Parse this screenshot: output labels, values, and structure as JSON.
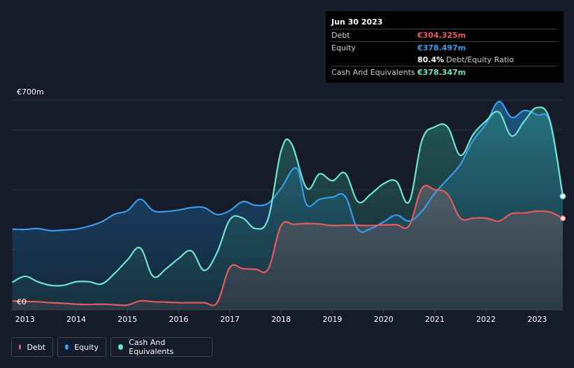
{
  "tooltip": {
    "date": "Jun 30 2023",
    "rows": [
      {
        "label": "Debt",
        "value": "€304.325m",
        "color": "#e45a5f"
      },
      {
        "label": "Equity",
        "value": "€378.497m",
        "color": "#3a9be8"
      },
      {
        "label": "",
        "value": "80.4%",
        "sub": "Debt/Equity Ratio",
        "color": "#ffffff"
      },
      {
        "label": "Cash And Equivalents",
        "value": "€378.347m",
        "color": "#6fe3cf"
      }
    ]
  },
  "legend": {
    "items": [
      {
        "label": "Debt",
        "color": "#e45a5f"
      },
      {
        "label": "Equity",
        "color": "#3a9be8"
      },
      {
        "label": "Cash And Equivalents",
        "color": "#6fe3cf"
      }
    ]
  },
  "chart_data": {
    "type": "area",
    "y_top_label": "€700m",
    "y_bottom_label": "€0",
    "ylim": [
      0,
      700
    ],
    "xlim": [
      2012.73,
      2023.5
    ],
    "x_ticks": [
      "2013",
      "2014",
      "2015",
      "2016",
      "2017",
      "2018",
      "2019",
      "2020",
      "2021",
      "2022",
      "2023"
    ],
    "grid": true,
    "legend_position": "bottom-left",
    "series": [
      {
        "name": "Equity",
        "color": "#3a9be8",
        "x": [
          2012.75,
          2013.0,
          2013.25,
          2013.5,
          2013.75,
          2014.0,
          2014.25,
          2014.5,
          2014.75,
          2015.0,
          2015.25,
          2015.5,
          2015.75,
          2016.0,
          2016.25,
          2016.5,
          2016.75,
          2017.0,
          2017.25,
          2017.5,
          2017.75,
          2018.0,
          2018.3,
          2018.5,
          2018.75,
          2019.0,
          2019.25,
          2019.5,
          2019.75,
          2020.0,
          2020.25,
          2020.5,
          2020.75,
          2021.0,
          2021.25,
          2021.5,
          2021.75,
          2022.0,
          2022.25,
          2022.5,
          2022.75,
          2023.0,
          2023.25,
          2023.5
        ],
        "y": [
          268,
          267,
          270,
          263,
          265,
          268,
          278,
          293,
          318,
          330,
          368,
          330,
          327,
          332,
          340,
          340,
          317,
          330,
          360,
          348,
          355,
          405,
          472,
          350,
          368,
          375,
          378,
          267,
          270,
          292,
          315,
          295,
          328,
          388,
          435,
          485,
          565,
          620,
          695,
          642,
          665,
          650,
          625,
          378
        ]
      },
      {
        "name": "Cash And Equivalents",
        "color": "#6fe3cf",
        "x": [
          2012.75,
          2013.0,
          2013.25,
          2013.5,
          2013.75,
          2014.0,
          2014.25,
          2014.5,
          2014.75,
          2015.0,
          2015.25,
          2015.5,
          2015.75,
          2016.0,
          2016.25,
          2016.5,
          2016.75,
          2017.0,
          2017.25,
          2017.5,
          2017.75,
          2018.0,
          2018.2,
          2018.5,
          2018.75,
          2019.0,
          2019.25,
          2019.5,
          2019.75,
          2020.0,
          2020.25,
          2020.5,
          2020.75,
          2021.0,
          2021.25,
          2021.5,
          2021.75,
          2022.0,
          2022.25,
          2022.5,
          2022.75,
          2023.0,
          2023.25,
          2023.5
        ],
        "y": [
          90,
          110,
          92,
          80,
          80,
          92,
          92,
          85,
          120,
          165,
          205,
          110,
          135,
          170,
          195,
          130,
          190,
          300,
          305,
          270,
          305,
          530,
          555,
          405,
          453,
          430,
          455,
          360,
          385,
          420,
          428,
          360,
          565,
          610,
          610,
          515,
          585,
          630,
          660,
          580,
          630,
          675,
          630,
          378
        ]
      },
      {
        "name": "Debt",
        "color": "#e45a5f",
        "x": [
          2012.75,
          2013.0,
          2013.25,
          2013.5,
          2013.75,
          2014.0,
          2014.25,
          2014.5,
          2014.75,
          2015.0,
          2015.25,
          2015.5,
          2015.75,
          2016.0,
          2016.25,
          2016.5,
          2016.75,
          2017.0,
          2017.25,
          2017.5,
          2017.75,
          2018.0,
          2018.25,
          2018.5,
          2018.75,
          2019.0,
          2019.25,
          2019.5,
          2019.75,
          2020.0,
          2020.25,
          2020.5,
          2020.75,
          2021.0,
          2021.25,
          2021.5,
          2021.75,
          2022.0,
          2022.25,
          2022.5,
          2022.75,
          2023.0,
          2023.25,
          2023.5
        ],
        "y": [
          28,
          26,
          25,
          22,
          20,
          17,
          16,
          17,
          15,
          14,
          28,
          25,
          24,
          22,
          22,
          22,
          22,
          140,
          136,
          134,
          135,
          280,
          284,
          287,
          285,
          280,
          281,
          281,
          280,
          282,
          283,
          280,
          405,
          400,
          385,
          305,
          305,
          305,
          295,
          320,
          322,
          328,
          325,
          304
        ]
      }
    ]
  }
}
